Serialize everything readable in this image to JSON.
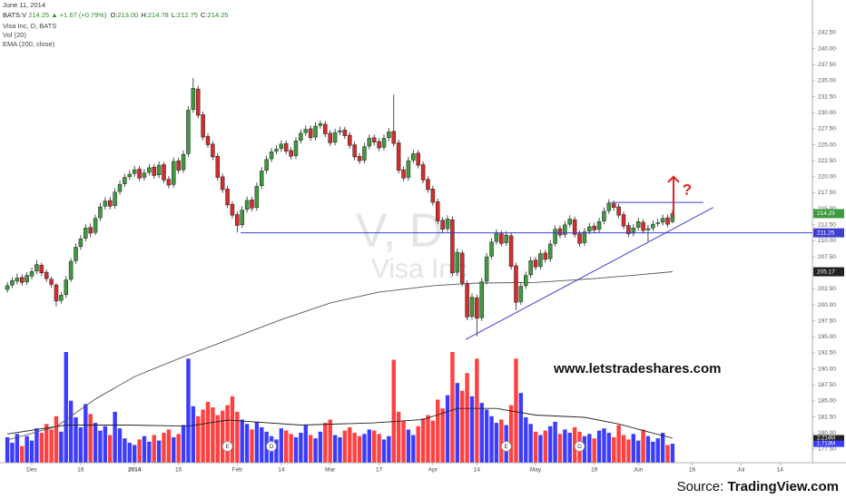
{
  "chart_data": {
    "type": "candlestick",
    "header": {
      "date": "June 11, 2014",
      "symbol": "BATS:V",
      "last": "214.25",
      "change": "▲ +1.67 (+0.79%)",
      "ohlc": [
        {
          "label": "O:",
          "value": "213.00"
        },
        {
          "label": "H:",
          "value": "214.78"
        },
        {
          "label": "L:",
          "value": "212.75"
        },
        {
          "label": "C:",
          "value": "214.25"
        }
      ]
    },
    "legend": [
      "Visa Inc, D, BATS",
      "Vol (20)",
      "EMA (200, close)"
    ],
    "watermark": {
      "symbol": "V, D",
      "name": "Visa Inc"
    },
    "website": "www.letstradeshares.com",
    "source": {
      "label": "Source:",
      "name": "TradingView.com"
    },
    "annotation_text": "?",
    "up_color": "#3f9a3f",
    "down_color": "#d42c2c",
    "vol_up_color": "#3c3cff",
    "vol_down_color": "#ff4040",
    "xlim": [
      -1.5,
      164.6
    ],
    "ylim": [
      175.36,
      242.5
    ],
    "vlim": [
      0,
      38.85
    ],
    "xticks": [
      {
        "value": 5,
        "label": "Dec"
      },
      {
        "value": 15,
        "label": "16"
      },
      {
        "value": 26,
        "label": "2014"
      },
      {
        "value": 35,
        "label": "15"
      },
      {
        "value": 47,
        "label": "Feb"
      },
      {
        "value": 56,
        "label": "14"
      },
      {
        "value": 66,
        "label": "Mar"
      },
      {
        "value": 76,
        "label": "17"
      },
      {
        "value": 87,
        "label": "Apr"
      },
      {
        "value": 96,
        "label": "14"
      },
      {
        "value": 108,
        "label": "May"
      },
      {
        "value": 120,
        "label": "19"
      },
      {
        "value": 129,
        "label": "Jun"
      },
      {
        "value": 140,
        "label": "16"
      },
      {
        "value": 150,
        "label": "Jul"
      },
      {
        "value": 158,
        "label": "14"
      }
    ],
    "yticks": [
      {
        "value": 177.5,
        "label": "177.50"
      },
      {
        "value": 180,
        "label": "180.00"
      },
      {
        "value": 182.5,
        "label": "182.50"
      },
      {
        "value": 185,
        "label": "185.00"
      },
      {
        "value": 187.5,
        "label": "187.50"
      },
      {
        "value": 190,
        "label": "190.00"
      },
      {
        "value": 192.5,
        "label": "192.50"
      },
      {
        "value": 195,
        "label": "195.00"
      },
      {
        "value": 197.5,
        "label": "197.50"
      },
      {
        "value": 200,
        "label": "200.00"
      },
      {
        "value": 202.5,
        "label": "202.50"
      },
      {
        "value": 205,
        "label": "205.00"
      },
      {
        "value": 207.5,
        "label": "207.50"
      },
      {
        "value": 210,
        "label": "210.00"
      },
      {
        "value": 212.5,
        "label": "212.50"
      },
      {
        "value": 215,
        "label": "215.00"
      },
      {
        "value": 217.5,
        "label": "217.50"
      },
      {
        "value": 220,
        "label": "220.00"
      },
      {
        "value": 222.5,
        "label": "222.50"
      },
      {
        "value": 225,
        "label": "225.00"
      },
      {
        "value": 227.5,
        "label": "227.50"
      },
      {
        "value": 230,
        "label": "230.00"
      },
      {
        "value": 232.5,
        "label": "232.50"
      },
      {
        "value": 235,
        "label": "235.00"
      },
      {
        "value": 237.5,
        "label": "237.50"
      },
      {
        "value": 240,
        "label": "240.00"
      },
      {
        "value": 242.5,
        "label": "242.50"
      }
    ],
    "candles": [
      [
        202.4,
        203.6,
        201.9,
        203.0
      ],
      [
        203.1,
        204.3,
        202.6,
        203.8
      ],
      [
        203.7,
        204.9,
        203.2,
        204.2
      ],
      [
        204.3,
        204.8,
        203.0,
        203.5
      ],
      [
        203.6,
        205.1,
        203.1,
        204.6
      ],
      [
        204.5,
        205.8,
        204.0,
        205.2
      ],
      [
        205.3,
        207.0,
        204.8,
        206.3
      ],
      [
        206.2,
        206.6,
        204.5,
        205.0
      ],
      [
        205.1,
        205.5,
        203.6,
        204.1
      ],
      [
        204.0,
        204.4,
        202.7,
        203.2
      ],
      [
        203.1,
        203.4,
        199.8,
        200.6
      ],
      [
        200.7,
        202.0,
        200.2,
        201.5
      ],
      [
        201.6,
        204.5,
        201.1,
        203.9
      ],
      [
        204.0,
        207.3,
        203.6,
        206.8
      ],
      [
        206.9,
        209.6,
        206.4,
        209.0
      ],
      [
        209.1,
        210.9,
        208.6,
        210.3
      ],
      [
        210.4,
        212.6,
        209.9,
        212.0
      ],
      [
        212.1,
        212.7,
        210.6,
        211.2
      ],
      [
        211.3,
        214.1,
        210.9,
        213.5
      ],
      [
        213.6,
        215.9,
        213.1,
        215.3
      ],
      [
        215.4,
        216.8,
        214.9,
        216.2
      ],
      [
        216.3,
        216.9,
        214.9,
        215.4
      ],
      [
        215.5,
        218.2,
        215.0,
        217.6
      ],
      [
        217.7,
        219.4,
        217.2,
        218.8
      ],
      [
        218.9,
        220.5,
        218.4,
        219.9
      ],
      [
        220.0,
        221.0,
        219.5,
        220.4
      ],
      [
        220.5,
        221.7,
        220.0,
        221.1
      ],
      [
        221.2,
        221.7,
        219.3,
        219.8
      ],
      [
        219.9,
        221.2,
        219.4,
        220.6
      ],
      [
        220.7,
        222.0,
        220.2,
        221.4
      ],
      [
        221.5,
        222.0,
        219.7,
        220.2
      ],
      [
        220.3,
        222.4,
        219.8,
        221.8
      ],
      [
        221.9,
        222.3,
        219.0,
        219.5
      ],
      [
        219.6,
        220.1,
        218.2,
        218.7
      ],
      [
        218.8,
        223.0,
        218.3,
        222.4
      ],
      [
        222.5,
        223.0,
        220.5,
        221.0
      ],
      [
        221.1,
        224.1,
        220.6,
        223.5
      ],
      [
        223.6,
        231.0,
        223.1,
        230.4
      ],
      [
        230.5,
        235.4,
        230.0,
        233.8
      ],
      [
        233.7,
        234.2,
        229.1,
        229.6
      ],
      [
        229.7,
        230.2,
        225.7,
        226.2
      ],
      [
        226.3,
        226.8,
        224.5,
        225.0
      ],
      [
        225.1,
        225.6,
        222.6,
        223.1
      ],
      [
        223.2,
        223.7,
        219.4,
        219.9
      ],
      [
        220.0,
        220.5,
        217.5,
        218.0
      ],
      [
        218.1,
        218.6,
        215.1,
        215.6
      ],
      [
        215.7,
        216.2,
        213.5,
        214.0
      ],
      [
        214.1,
        214.6,
        211.3,
        212.4
      ],
      [
        212.5,
        215.4,
        212.0,
        214.8
      ],
      [
        214.9,
        216.9,
        214.4,
        216.3
      ],
      [
        216.4,
        216.9,
        214.6,
        215.1
      ],
      [
        215.2,
        219.1,
        214.7,
        218.5
      ],
      [
        218.6,
        221.5,
        218.1,
        220.9
      ],
      [
        221.0,
        223.3,
        220.5,
        222.7
      ],
      [
        222.8,
        224.5,
        222.3,
        223.9
      ],
      [
        224.0,
        224.9,
        223.5,
        224.3
      ],
      [
        224.4,
        225.7,
        223.9,
        225.1
      ],
      [
        225.2,
        225.7,
        223.5,
        224.0
      ],
      [
        224.1,
        224.6,
        222.7,
        223.2
      ],
      [
        223.3,
        226.2,
        222.8,
        225.6
      ],
      [
        225.7,
        227.4,
        225.2,
        226.8
      ],
      [
        226.9,
        228.0,
        226.4,
        227.4
      ],
      [
        227.5,
        228.0,
        225.6,
        226.1
      ],
      [
        226.2,
        228.5,
        225.7,
        227.9
      ],
      [
        228.0,
        228.8,
        227.5,
        228.3
      ],
      [
        228.2,
        228.7,
        226.2,
        226.7
      ],
      [
        226.8,
        227.3,
        224.8,
        225.3
      ],
      [
        225.4,
        227.5,
        224.9,
        226.9
      ],
      [
        227.0,
        227.8,
        226.5,
        227.2
      ],
      [
        227.3,
        227.8,
        225.9,
        226.4
      ],
      [
        226.5,
        227.0,
        224.4,
        224.9
      ],
      [
        225.0,
        225.5,
        222.6,
        223.1
      ],
      [
        223.2,
        223.7,
        222.0,
        222.5
      ],
      [
        222.6,
        225.3,
        222.1,
        224.7
      ],
      [
        224.8,
        226.6,
        224.3,
        226.0
      ],
      [
        226.1,
        226.6,
        224.9,
        225.4
      ],
      [
        225.5,
        226.0,
        224.0,
        224.5
      ],
      [
        224.6,
        226.6,
        224.1,
        226.0
      ],
      [
        226.1,
        227.6,
        225.6,
        227.0
      ],
      [
        227.1,
        232.8,
        224.7,
        225.2
      ],
      [
        225.3,
        225.8,
        220.5,
        221.0
      ],
      [
        221.1,
        221.6,
        219.3,
        219.8
      ],
      [
        219.9,
        223.1,
        219.4,
        222.5
      ],
      [
        222.6,
        224.2,
        222.1,
        223.6
      ],
      [
        223.7,
        224.2,
        221.3,
        221.8
      ],
      [
        221.9,
        222.4,
        219.0,
        219.5
      ],
      [
        219.6,
        220.1,
        217.5,
        218.0
      ],
      [
        218.1,
        218.6,
        215.5,
        216.0
      ],
      [
        216.1,
        216.6,
        212.6,
        213.1
      ],
      [
        213.2,
        213.7,
        211.3,
        211.8
      ],
      [
        211.9,
        214.0,
        211.4,
        213.4
      ],
      [
        213.3,
        213.8,
        204.5,
        205.0
      ],
      [
        205.1,
        208.8,
        204.6,
        208.2
      ],
      [
        208.1,
        208.6,
        202.9,
        203.4
      ],
      [
        203.3,
        203.8,
        197.6,
        198.1
      ],
      [
        198.2,
        201.8,
        197.7,
        201.2
      ],
      [
        201.1,
        201.6,
        195.1,
        197.9
      ],
      [
        198.0,
        204.2,
        197.5,
        203.6
      ],
      [
        203.7,
        208.1,
        203.2,
        207.5
      ],
      [
        207.6,
        210.4,
        207.1,
        209.8
      ],
      [
        209.9,
        211.8,
        209.4,
        211.2
      ],
      [
        211.1,
        211.6,
        209.1,
        209.6
      ],
      [
        209.7,
        211.5,
        209.2,
        210.9
      ],
      [
        210.8,
        211.3,
        205.5,
        206.0
      ],
      [
        206.1,
        206.6,
        199.2,
        200.4
      ],
      [
        200.5,
        203.5,
        200.0,
        202.9
      ],
      [
        203.0,
        205.2,
        202.5,
        204.6
      ],
      [
        204.7,
        207.5,
        204.2,
        206.9
      ],
      [
        207.0,
        207.5,
        205.4,
        205.9
      ],
      [
        206.0,
        208.6,
        205.5,
        208.0
      ],
      [
        208.1,
        208.6,
        206.6,
        207.1
      ],
      [
        207.2,
        210.1,
        206.7,
        209.5
      ],
      [
        209.6,
        212.4,
        209.1,
        211.8
      ],
      [
        211.9,
        212.4,
        210.4,
        210.9
      ],
      [
        211.0,
        213.1,
        210.5,
        212.5
      ],
      [
        212.6,
        214.0,
        212.1,
        213.4
      ],
      [
        213.3,
        213.8,
        210.5,
        211.0
      ],
      [
        211.1,
        211.6,
        209.1,
        209.6
      ],
      [
        209.7,
        212.0,
        209.2,
        211.4
      ],
      [
        211.5,
        212.8,
        211.0,
        212.2
      ],
      [
        212.3,
        212.8,
        211.2,
        211.7
      ],
      [
        211.8,
        213.6,
        211.3,
        213.0
      ],
      [
        213.1,
        215.2,
        212.6,
        214.6
      ],
      [
        214.7,
        216.5,
        214.2,
        215.9
      ],
      [
        215.8,
        216.3,
        214.7,
        215.2
      ],
      [
        215.3,
        215.8,
        213.5,
        214.0
      ],
      [
        214.1,
        214.6,
        211.8,
        212.3
      ],
      [
        212.4,
        212.9,
        210.6,
        211.1
      ],
      [
        211.2,
        212.6,
        210.7,
        212.0
      ],
      [
        212.1,
        213.6,
        211.6,
        213.0
      ],
      [
        212.9,
        213.4,
        211.1,
        211.6
      ],
      [
        211.7,
        212.5,
        209.9,
        211.9
      ],
      [
        212.0,
        213.2,
        211.5,
        212.6
      ],
      [
        212.7,
        213.4,
        212.2,
        212.8
      ],
      [
        212.9,
        214.1,
        212.4,
        213.5
      ],
      [
        213.6,
        214.1,
        212.1,
        212.58
      ],
      [
        213.0,
        214.78,
        212.75,
        214.25
      ]
    ],
    "volume": [
      2.3,
      1.8,
      2.6,
      1.5,
      2.4,
      2.0,
      3.1,
      2.7,
      3.5,
      3.0,
      4.2,
      2.8,
      10.0,
      5.6,
      4.1,
      3.2,
      5.3,
      4.4,
      3.6,
      2.9,
      3.3,
      2.5,
      4.6,
      3.1,
      2.2,
      1.8,
      1.6,
      2.1,
      2.4,
      1.9,
      2.5,
      2.0,
      2.7,
      3.0,
      2.3,
      2.6,
      3.4,
      9.4,
      5.1,
      4.2,
      4.8,
      5.5,
      5.0,
      4.3,
      4.7,
      5.2,
      6.0,
      4.6,
      3.9,
      3.5,
      3.0,
      3.7,
      3.2,
      2.8,
      2.4,
      2.1,
      3.1,
      2.9,
      2.6,
      2.3,
      2.7,
      3.4,
      2.5,
      2.2,
      2.8,
      3.6,
      3.9,
      2.5,
      2.3,
      2.9,
      3.2,
      2.7,
      2.4,
      2.6,
      3.0,
      2.9,
      2.6,
      2.1,
      2.4,
      9.3,
      4.6,
      3.8,
      3.0,
      2.5,
      3.3,
      4.0,
      4.3,
      3.8,
      5.7,
      4.9,
      6.1,
      10.0,
      7.2,
      6.5,
      8.1,
      6.0,
      9.4,
      5.4,
      4.8,
      4.2,
      3.6,
      3.9,
      3.4,
      5.2,
      9.4,
      6.3,
      4.1,
      3.5,
      2.8,
      2.5,
      2.9,
      3.3,
      3.7,
      2.6,
      3.0,
      2.7,
      3.2,
      2.8,
      2.4,
      2.6,
      2.2,
      2.9,
      3.1,
      2.7,
      2.3,
      3.4,
      2.5,
      2.1,
      2.6,
      2.0,
      3.0,
      2.4,
      1.9,
      2.2,
      2.7,
      1.6,
      1.713
    ],
    "ema": {
      "color": "#555555",
      "x": [
        0,
        10,
        18,
        26,
        36,
        46,
        56,
        66,
        76,
        87,
        96,
        108,
        120,
        129,
        136
      ],
      "values": [
        178.9,
        181.0,
        185.3,
        188.8,
        191.9,
        194.8,
        197.7,
        200.3,
        202.0,
        203.0,
        203.4,
        203.5,
        204.1,
        204.7,
        205.17
      ]
    },
    "vol_ma": {
      "color": "#222222",
      "x": [
        0,
        12,
        25,
        37,
        45,
        60,
        75,
        85,
        92,
        100,
        108,
        118,
        125,
        130,
        136
      ],
      "values": [
        2.6,
        3.4,
        3.4,
        3.3,
        3.85,
        3.4,
        3.6,
        3.9,
        4.9,
        4.9,
        4.3,
        4.1,
        3.5,
        2.9,
        2.214
      ]
    },
    "events": [
      {
        "x": 45,
        "label": "E"
      },
      {
        "x": 54,
        "label": "D"
      },
      {
        "x": 102,
        "label": "E"
      },
      {
        "x": 117,
        "label": "D"
      }
    ],
    "annotations": {
      "color": "#3f3fcf",
      "arrow_color": "#e02020",
      "lines": [
        {
          "x": [
            47.7,
            164.6
          ],
          "y": [
            211.25,
            211.25
          ]
        },
        {
          "x": [
            123.4,
            142.3
          ],
          "y": [
            216.0,
            216.0
          ]
        },
        {
          "x": [
            93.7,
            144.3
          ],
          "y": [
            194.6,
            215.2
          ]
        }
      ],
      "arrow": {
        "x": [
          136.2,
          136.2
        ],
        "y": [
          213.6,
          220.0
        ]
      }
    },
    "price_tags": [
      {
        "value": 214.25,
        "color": "#3f9a3f"
      },
      {
        "value": 211.25,
        "color": "#3f3fcf"
      },
      {
        "value": 205.17,
        "color": "#222222"
      }
    ],
    "volume_tags": [
      {
        "value": 2.214,
        "label": "2.214M",
        "color": "#222222"
      },
      {
        "value": 1.713,
        "label": "1.713M",
        "color": "#3c3cff"
      }
    ]
  }
}
